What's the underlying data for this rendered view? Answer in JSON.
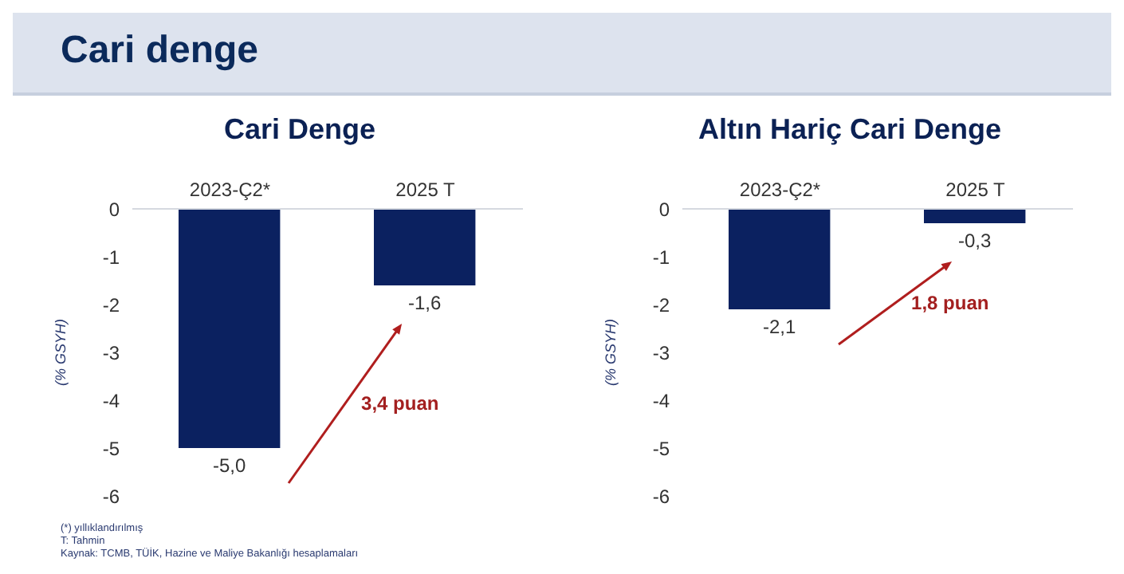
{
  "chart_data": [
    {
      "type": "other",
      "title": "Cari denge",
      "annotations": [
        "(*) yıllıklandırılmış",
        "T: Tahmin",
        "Kaynak: TCMB, TÜİK, Hazine ve Maliye Bakanlığı hesaplamaları"
      ]
    },
    {
      "type": "bar",
      "title": "Cari Denge",
      "ylabel": "(% GSYH)",
      "categories": [
        "2023-Ç2*",
        "2025 T"
      ],
      "values": [
        -5.0,
        -1.6
      ],
      "value_labels": [
        "-5,0",
        "-1,6"
      ],
      "color": "#0b2160",
      "ylim": [
        -6,
        0
      ],
      "yticks": [
        -6,
        -5,
        -4,
        -3,
        -2,
        -1,
        0
      ],
      "grid": false,
      "legend": false,
      "annotations": [
        "3,4 puan"
      ]
    },
    {
      "type": "bar",
      "title": "Altın Hariç Cari Denge",
      "ylabel": "(% GSYH)",
      "categories": [
        "2023-Ç2*",
        "2025 T"
      ],
      "values": [
        -2.1,
        -0.3
      ],
      "value_labels": [
        "-2,1",
        "-0,3"
      ],
      "color": "#0b2160",
      "ylim": [
        -6,
        0
      ],
      "yticks": [
        -6,
        -5,
        -4,
        -3,
        -2,
        -1,
        0
      ],
      "grid": false,
      "legend": false,
      "annotations": [
        "1,8 puan"
      ]
    }
  ]
}
